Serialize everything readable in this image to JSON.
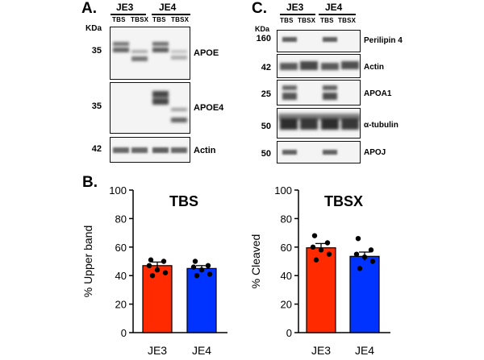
{
  "panelA": {
    "letter": "A.",
    "groups": [
      "JE3",
      "JE4"
    ],
    "lanes": [
      "TBS",
      "TBSX",
      "TBS",
      "TBSX"
    ],
    "kda": "KDa",
    "blots": [
      {
        "marker": "35",
        "label": "APOE"
      },
      {
        "marker": "35",
        "label": "APOE4"
      },
      {
        "marker": "42",
        "label": "Actin"
      }
    ]
  },
  "panelC": {
    "letter": "C.",
    "groups": [
      "JE3",
      "JE4"
    ],
    "lanes": [
      "TBS",
      "TBSX",
      "TBS",
      "TBSX"
    ],
    "kda": "KDa",
    "blots": [
      {
        "marker": "160",
        "label": "Perilipin 4"
      },
      {
        "marker": "42",
        "label": "Actin"
      },
      {
        "marker": "25",
        "label": "APOA1"
      },
      {
        "marker": "50",
        "label": "α-tubulin"
      },
      {
        "marker": "50",
        "label": "APOJ"
      }
    ]
  },
  "panelB": {
    "letter": "B."
  },
  "chart_data": [
    {
      "type": "bar",
      "title": "TBS",
      "ylabel": "% Upper band",
      "categories": [
        "JE3",
        "JE4"
      ],
      "values": [
        47,
        45
      ],
      "errors": [
        2.5,
        2
      ],
      "colors": [
        "#ff2a00",
        "#0033ff"
      ],
      "ylim": [
        0,
        100
      ],
      "yticks": [
        0,
        20,
        40,
        60,
        80,
        100
      ],
      "points": [
        [
          51,
          50,
          47,
          44,
          42,
          40
        ],
        [
          50,
          47,
          46,
          44,
          41,
          40
        ]
      ]
    },
    {
      "type": "bar",
      "title": "TBSX",
      "ylabel": "% Cleaved",
      "categories": [
        "JE3",
        "JE4"
      ],
      "values": [
        59.5,
        53.5
      ],
      "errors": [
        3,
        3
      ],
      "colors": [
        "#ff2a00",
        "#0033ff"
      ],
      "ylim": [
        0,
        100
      ],
      "yticks": [
        0,
        20,
        40,
        60,
        80,
        100
      ],
      "points": [
        [
          68,
          63,
          60,
          58,
          55,
          51
        ],
        [
          66,
          58,
          55,
          53,
          50,
          45
        ]
      ]
    }
  ]
}
